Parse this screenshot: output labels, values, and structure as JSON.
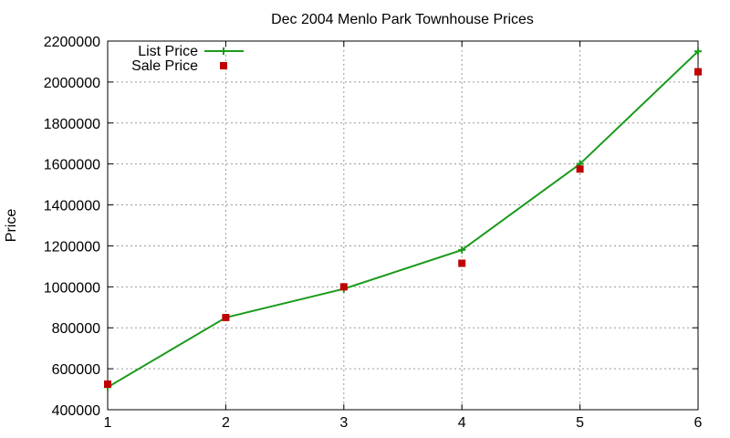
{
  "chart_data": {
    "type": "line",
    "title": "Dec 2004 Menlo Park Townhouse Prices",
    "xlabel": "",
    "ylabel": "Price",
    "x": [
      1,
      2,
      3,
      4,
      5,
      6
    ],
    "xlim": [
      1,
      6
    ],
    "ylim": [
      400000,
      2200000
    ],
    "xticks": [
      "1",
      "2",
      "3",
      "4",
      "5",
      "6"
    ],
    "yticks": [
      "400000",
      "600000",
      "800000",
      "1000000",
      "1200000",
      "1400000",
      "1600000",
      "1800000",
      "2000000",
      "2200000"
    ],
    "grid": true,
    "legend_position": "top-left",
    "series": [
      {
        "name": "List Price",
        "style": "line-with-plus-markers",
        "color": "#1a9a1a",
        "values": [
          510000,
          850000,
          990000,
          1180000,
          1600000,
          2150000
        ]
      },
      {
        "name": "Sale Price",
        "style": "square-markers",
        "color": "#c00000",
        "values": [
          525000,
          850000,
          1000000,
          1115000,
          1575000,
          2050000
        ]
      }
    ]
  }
}
